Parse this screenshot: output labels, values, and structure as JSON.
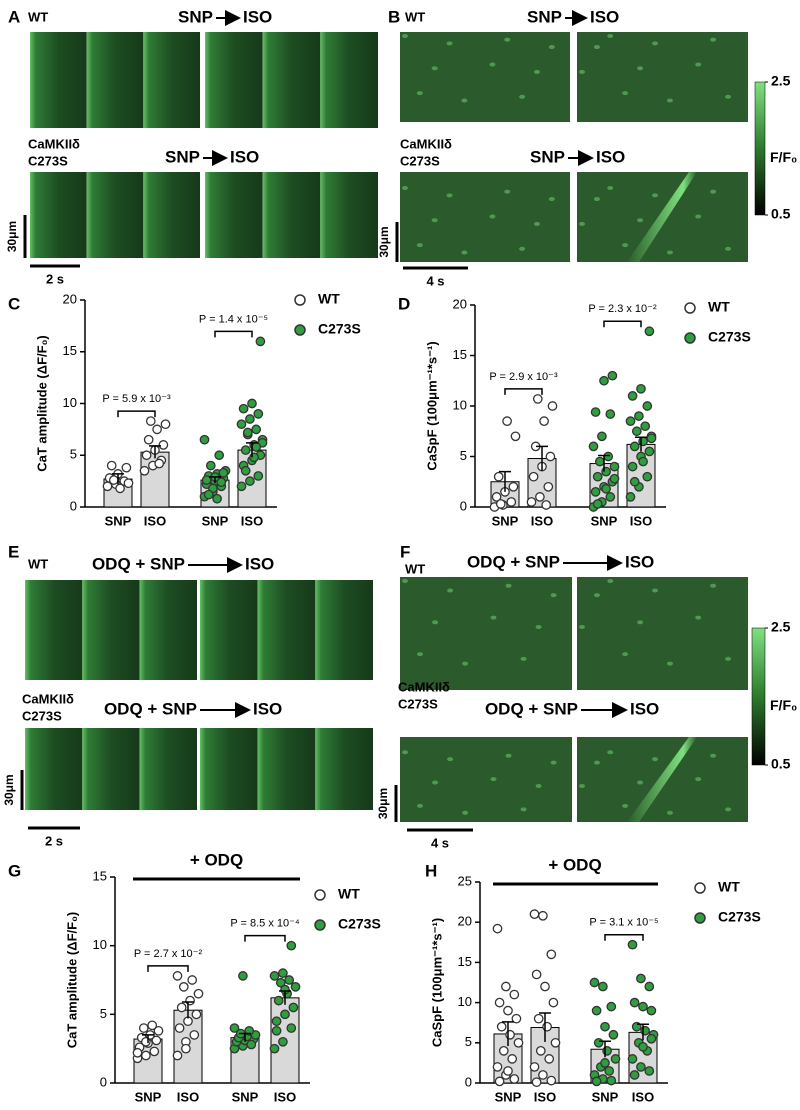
{
  "image_panels": [
    {
      "letter": "A",
      "scale_x": "2 s",
      "scale_y": "30μm",
      "rows": [
        {
          "genotype": [
            "WT"
          ],
          "condition_from": "SNP",
          "condition_to": "ISO"
        },
        {
          "genotype": [
            "CaMKIIδ",
            "C273S"
          ],
          "condition_from": "SNP",
          "condition_to": "ISO"
        }
      ]
    },
    {
      "letter": "B",
      "scale_x": "4 s",
      "scale_y": "30μm",
      "rows": [
        {
          "genotype": [
            "WT"
          ],
          "condition_from": "SNP",
          "condition_to": "ISO"
        },
        {
          "genotype": [
            "CaMKIIδ",
            "C273S"
          ],
          "condition_from": "SNP",
          "condition_to": "ISO"
        }
      ],
      "colorbar": {
        "label": "F/F₀",
        "lim": [
          0.5,
          2.5
        ],
        "ticks": [
          0.5,
          2.5
        ]
      }
    },
    {
      "letter": "E",
      "scale_x": "2 s",
      "scale_y": "30μm",
      "rows": [
        {
          "genotype": [
            "WT"
          ],
          "condition_from": "ODQ + SNP",
          "condition_to": "ISO"
        },
        {
          "genotype": [
            "CaMKIIδ",
            "C273S"
          ],
          "condition_from": "ODQ + SNP",
          "condition_to": "ISO"
        }
      ]
    },
    {
      "letter": "F",
      "scale_x": "4 s",
      "scale_y": "30μm",
      "rows": [
        {
          "genotype": [
            "WT"
          ],
          "condition_from": "ODQ + SNP",
          "condition_to": "ISO"
        },
        {
          "genotype": [
            "CaMKIIδ",
            "C273S"
          ],
          "condition_from": "ODQ + SNP",
          "condition_to": "ISO"
        }
      ],
      "colorbar": {
        "label": "F/F₀",
        "lim": [
          0.5,
          2.5
        ],
        "ticks": [
          0.5,
          2.5
        ]
      }
    }
  ],
  "chart_data": [
    {
      "type": "bar",
      "panel": "C",
      "y_label": "CaT amplitude (ΔF/F₀)",
      "categories": [
        "SNP",
        "ISO",
        "SNP",
        "ISO"
      ],
      "ylim": [
        0,
        20
      ],
      "yticks": [
        0,
        5,
        10,
        15,
        20
      ],
      "series": [
        {
          "name": "WT",
          "color": "#ffffff",
          "values": [
            2.7,
            5.3,
            null,
            null
          ],
          "errors": [
            0.5,
            0.6,
            null,
            null
          ],
          "points": [
            [
              2.0,
              2.2,
              2.5,
              2.8,
              3.2,
              3.8,
              4.0,
              1.8,
              2.3,
              2.6
            ],
            [
              3.5,
              4.0,
              4.5,
              5.0,
              5.5,
              6.0,
              6.5,
              7.5,
              8.0,
              8.3,
              4.2
            ],
            null,
            null
          ],
          "annotation": "P = 5.9 x 10⁻³"
        },
        {
          "name": "C273S",
          "color": "#2e9e3e",
          "values": [
            null,
            null,
            2.6,
            5.5
          ],
          "errors": [
            null,
            null,
            0.3,
            0.7
          ],
          "points": [
            null,
            null,
            [
              1.0,
              1.5,
              2.0,
              2.2,
              2.5,
              2.8,
              3.0,
              3.2,
              3.5,
              4.0,
              5.0,
              6.5,
              1.8,
              2.4,
              2.6,
              2.9,
              3.3,
              1.2,
              0.8
            ],
            [
              2.0,
              2.5,
              3.0,
              4.0,
              4.5,
              5.0,
              5.5,
              6.0,
              6.5,
              7.0,
              7.5,
              8.0,
              8.5,
              9.0,
              9.5,
              10.0,
              16.0,
              3.5,
              4.8,
              6.2,
              7.2,
              5.8
            ]
          ],
          "annotation": "P = 1.4 x 10⁻⁵"
        }
      ]
    },
    {
      "type": "bar",
      "panel": "D",
      "y_label": "CaSpF (100μm⁻¹*s⁻¹)",
      "categories": [
        "SNP",
        "ISO",
        "SNP",
        "ISO"
      ],
      "ylim": [
        0,
        20
      ],
      "yticks": [
        0,
        5,
        10,
        15,
        20
      ],
      "series": [
        {
          "name": "WT",
          "color": "#ffffff",
          "values": [
            2.5,
            4.8,
            null,
            null
          ],
          "errors": [
            1.0,
            1.2,
            null,
            null
          ],
          "points": [
            [
              0,
              0.2,
              0.5,
              1.0,
              1.5,
              2.0,
              3.0,
              8.5,
              7.0,
              0.3
            ],
            [
              0.5,
              1.0,
              2.0,
              3.0,
              4.0,
              5.0,
              6.0,
              8.5,
              10.0,
              10.7,
              0.2
            ],
            null,
            null
          ],
          "annotation": "P = 2.9 x 10⁻³"
        },
        {
          "name": "C273S",
          "color": "#2e9e3e",
          "values": [
            null,
            null,
            4.3,
            6.2
          ],
          "errors": [
            null,
            null,
            0.8,
            0.7
          ],
          "points": [
            null,
            null,
            [
              0,
              0.5,
              1.0,
              1.5,
              2.0,
              2.5,
              3.0,
              3.5,
              4.0,
              4.5,
              5.0,
              6.0,
              7.0,
              9.2,
              9.4,
              12.5,
              13.0,
              0.3,
              1.8,
              2.8
            ],
            [
              1.0,
              2.0,
              3.0,
              4.0,
              5.0,
              5.5,
              6.0,
              6.5,
              7.0,
              7.5,
              8.0,
              8.5,
              9.0,
              10.0,
              11.0,
              11.7,
              17.4,
              2.5,
              4.5,
              6.8
            ]
          ],
          "annotation": "P = 2.3 x 10⁻²"
        }
      ]
    },
    {
      "type": "bar",
      "panel": "G",
      "title": "+ ODQ",
      "y_label": "CaT amplitude (ΔF/F₀)",
      "categories": [
        "SNP",
        "ISO",
        "SNP",
        "ISO"
      ],
      "ylim": [
        0,
        15
      ],
      "yticks": [
        0,
        5,
        10,
        15
      ],
      "series": [
        {
          "name": "WT",
          "color": "#ffffff",
          "values": [
            3.2,
            5.3,
            null,
            null
          ],
          "errors": [
            0.3,
            0.6,
            null,
            null
          ],
          "points": [
            [
              1.8,
              2.0,
              2.3,
              2.6,
              2.9,
              3.1,
              3.3,
              3.5,
              3.8,
              4.0,
              4.2,
              2.2,
              3.0
            ],
            [
              2.0,
              3.0,
              3.5,
              4.0,
              4.5,
              5.0,
              5.5,
              6.0,
              6.5,
              7.0,
              7.5,
              7.8,
              2.5
            ],
            null,
            null
          ],
          "annotation": "P = 2.7 x 10⁻²"
        },
        {
          "name": "C273S",
          "color": "#2e9e3e",
          "values": [
            null,
            null,
            3.3,
            6.2
          ],
          "errors": [
            null,
            null,
            0.3,
            0.5
          ],
          "points": [
            null,
            null,
            [
              2.5,
              2.7,
              2.9,
              3.0,
              3.1,
              3.2,
              3.3,
              3.4,
              3.5,
              3.6,
              3.8,
              4.0,
              7.8,
              2.8
            ],
            [
              2.5,
              3.0,
              4.0,
              4.5,
              5.0,
              5.5,
              6.0,
              6.5,
              7.0,
              7.3,
              7.5,
              7.8,
              8.0,
              10.0,
              3.8,
              6.8
            ]
          ],
          "annotation": "P = 8.5 x 10⁻⁴"
        }
      ]
    },
    {
      "type": "bar",
      "panel": "H",
      "title": "+ ODQ",
      "y_label": "CaSpF (100μm⁻¹*s⁻¹)",
      "categories": [
        "SNP",
        "ISO",
        "SNP",
        "ISO"
      ],
      "ylim": [
        0,
        25
      ],
      "yticks": [
        0,
        5,
        10,
        15,
        20,
        25
      ],
      "series": [
        {
          "name": "WT",
          "color": "#ffffff",
          "values": [
            6.1,
            6.9,
            null,
            null
          ],
          "errors": [
            1.5,
            1.8,
            null,
            null
          ],
          "points": [
            [
              19.2,
              12,
              11,
              10,
              9,
              8,
              7,
              6,
              5,
              4,
              3,
              2,
              1,
              0.5,
              0.2,
              1.5
            ],
            [
              21,
              20.8,
              16,
              13.5,
              12,
              10,
              8,
              7,
              5,
              4,
              3,
              2,
              1,
              0.3,
              0.1
            ],
            null,
            null
          ]
        },
        {
          "name": "C273S",
          "color": "#2e9e3e",
          "values": [
            null,
            null,
            4.2,
            6.3
          ],
          "errors": [
            null,
            null,
            1.0,
            1.0
          ],
          "points": [
            null,
            null,
            [
              12.5,
              12,
              9.5,
              9,
              7,
              6,
              5,
              4,
              3,
              2,
              1.5,
              1,
              0.5,
              0.3,
              0.2,
              2.5
            ],
            [
              17.2,
              13,
              12,
              10,
              9.5,
              9,
              7,
              6.5,
              6,
              5,
              4,
              3,
              2,
              1.5,
              1,
              4.5,
              5.5
            ]
          ],
          "annotation": "P = 3.1 x 10⁻⁵"
        }
      ]
    }
  ]
}
